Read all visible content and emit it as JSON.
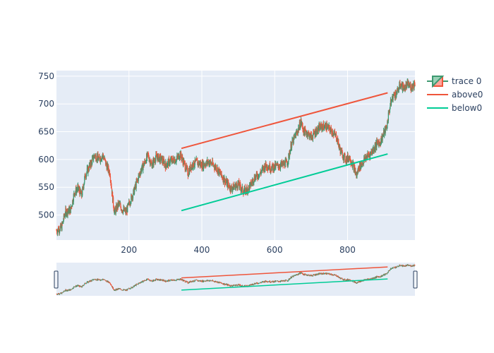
{
  "chart_data": {
    "type": "candlestick",
    "xlim": [
      1,
      985
    ],
    "ylim": [
      455,
      760
    ],
    "x_ticks": [
      200,
      400,
      600,
      800
    ],
    "y_ticks": [
      500,
      550,
      600,
      650,
      700,
      750
    ],
    "grid": true,
    "legend_position": "top-right",
    "range_slider": true,
    "colors": {
      "increasing": "#3d9970",
      "decreasing": "#ef553b",
      "above0": "#ef553b",
      "below0": "#00cc96",
      "plot_bg": "#e5ecf6",
      "grid": "#ffffff",
      "text": "#2a3f5f"
    },
    "anchors": [
      [
        1,
        472
      ],
      [
        15,
        478
      ],
      [
        25,
        505
      ],
      [
        40,
        510
      ],
      [
        50,
        540
      ],
      [
        60,
        548
      ],
      [
        70,
        535
      ],
      [
        80,
        572
      ],
      [
        95,
        592
      ],
      [
        105,
        608
      ],
      [
        118,
        600
      ],
      [
        128,
        608
      ],
      [
        138,
        590
      ],
      [
        148,
        575
      ],
      [
        155,
        530
      ],
      [
        160,
        505
      ],
      [
        172,
        520
      ],
      [
        182,
        510
      ],
      [
        192,
        505
      ],
      [
        200,
        520
      ],
      [
        212,
        540
      ],
      [
        222,
        560
      ],
      [
        232,
        580
      ],
      [
        240,
        590
      ],
      [
        252,
        608
      ],
      [
        262,
        590
      ],
      [
        275,
        605
      ],
      [
        290,
        600
      ],
      [
        300,
        590
      ],
      [
        315,
        598
      ],
      [
        330,
        600
      ],
      [
        340,
        610
      ],
      [
        350,
        595
      ],
      [
        362,
        575
      ],
      [
        370,
        588
      ],
      [
        385,
        595
      ],
      [
        400,
        590
      ],
      [
        420,
        596
      ],
      [
        440,
        585
      ],
      [
        455,
        570
      ],
      [
        465,
        560
      ],
      [
        480,
        548
      ],
      [
        500,
        555
      ],
      [
        515,
        542
      ],
      [
        530,
        550
      ],
      [
        545,
        568
      ],
      [
        560,
        575
      ],
      [
        575,
        590
      ],
      [
        590,
        585
      ],
      [
        605,
        588
      ],
      [
        620,
        590
      ],
      [
        635,
        595
      ],
      [
        645,
        625
      ],
      [
        655,
        640
      ],
      [
        665,
        655
      ],
      [
        672,
        668
      ],
      [
        680,
        650
      ],
      [
        690,
        648
      ],
      [
        700,
        640
      ],
      [
        712,
        650
      ],
      [
        725,
        658
      ],
      [
        740,
        660
      ],
      [
        755,
        652
      ],
      [
        770,
        640
      ],
      [
        778,
        620
      ],
      [
        785,
        610
      ],
      [
        795,
        600
      ],
      [
        805,
        605
      ],
      [
        815,
        590
      ],
      [
        820,
        580
      ],
      [
        825,
        570
      ],
      [
        830,
        585
      ],
      [
        842,
        595
      ],
      [
        852,
        605
      ],
      [
        862,
        610
      ],
      [
        872,
        620
      ],
      [
        882,
        630
      ],
      [
        890,
        632
      ],
      [
        900,
        648
      ],
      [
        908,
        660
      ],
      [
        912,
        680
      ],
      [
        918,
        700
      ],
      [
        925,
        715
      ],
      [
        935,
        720
      ],
      [
        945,
        735
      ],
      [
        955,
        728
      ],
      [
        965,
        735
      ],
      [
        975,
        730
      ],
      [
        985,
        738
      ]
    ],
    "series": [
      {
        "name": "trace 0",
        "kind": "candlestick"
      },
      {
        "name": "above0",
        "kind": "line",
        "x": [
          344,
          910
        ],
        "y": [
          620,
          720
        ]
      },
      {
        "name": "below0",
        "kind": "line",
        "x": [
          344,
          910
        ],
        "y": [
          508,
          610
        ]
      }
    ]
  }
}
